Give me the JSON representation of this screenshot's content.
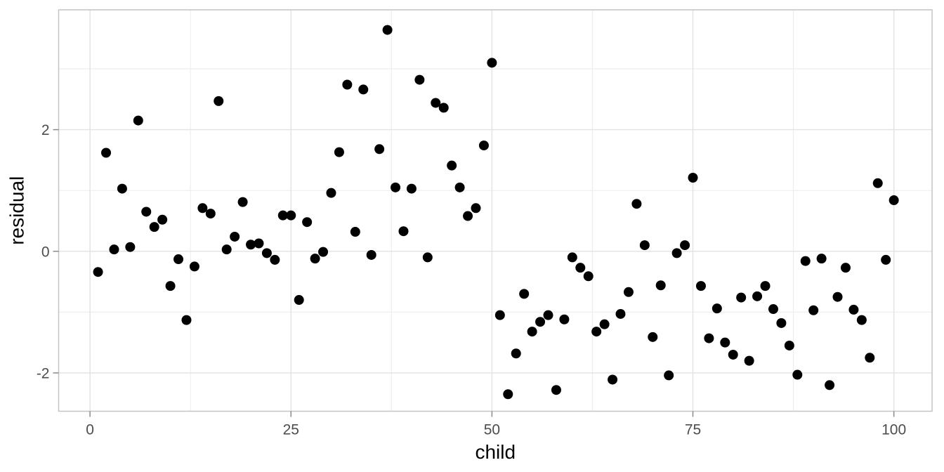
{
  "figure": {
    "background": "#ffffff"
  },
  "chart_data": {
    "type": "scatter",
    "title": "",
    "xlabel": "child",
    "ylabel": "residual",
    "x_ticks": [
      0,
      25,
      50,
      75,
      100
    ],
    "x_tick_labels": [
      "0",
      "25",
      "50",
      "75",
      "100"
    ],
    "y_ticks": [
      2,
      0,
      -2
    ],
    "y_tick_labels": [
      "2",
      "0",
      "-2"
    ],
    "x_minor_ticks": [
      12.5,
      37.5,
      62.5,
      87.5
    ],
    "y_minor_ticks": [
      3,
      1,
      -1
    ],
    "xlim": [
      -3.9,
      104.75
    ],
    "ylim": [
      -2.63,
      3.97
    ],
    "grid": "major+minor",
    "legend_position": "none",
    "marker": {
      "shape": "circle",
      "color": "#000000",
      "radius_px": 7
    },
    "theme": {
      "panel_background": "#ffffff",
      "panel_border": "#c4c4c4",
      "grid_major": "#e2e2e2",
      "grid_minor": "#eeeeee",
      "tick_mark": "#8a8a8a",
      "tick_label": "#4d4d4d",
      "axis_title": "#000000"
    },
    "series_name": "residuals",
    "points": [
      [
        1,
        -0.34
      ],
      [
        2,
        1.62
      ],
      [
        3,
        0.03
      ],
      [
        4,
        1.03
      ],
      [
        5,
        0.07
      ],
      [
        6,
        2.15
      ],
      [
        7,
        0.65
      ],
      [
        8,
        0.4
      ],
      [
        9,
        0.52
      ],
      [
        10,
        -0.57
      ],
      [
        11,
        -0.13
      ],
      [
        12,
        -1.13
      ],
      [
        13,
        -0.25
      ],
      [
        14,
        0.71
      ],
      [
        15,
        0.62
      ],
      [
        16,
        2.47
      ],
      [
        17,
        0.03
      ],
      [
        18,
        0.24
      ],
      [
        19,
        0.81
      ],
      [
        20,
        0.11
      ],
      [
        21,
        0.13
      ],
      [
        22,
        -0.03
      ],
      [
        23,
        -0.14
      ],
      [
        24,
        0.59
      ],
      [
        25,
        0.59
      ],
      [
        26,
        -0.8
      ],
      [
        27,
        0.48
      ],
      [
        28,
        -0.12
      ],
      [
        29,
        -0.01
      ],
      [
        30,
        0.96
      ],
      [
        31,
        1.63
      ],
      [
        32,
        2.74
      ],
      [
        33,
        0.32
      ],
      [
        34,
        2.66
      ],
      [
        35,
        -0.06
      ],
      [
        36,
        1.68
      ],
      [
        37,
        3.64
      ],
      [
        38,
        1.05
      ],
      [
        39,
        0.33
      ],
      [
        40,
        1.03
      ],
      [
        41,
        2.82
      ],
      [
        42,
        -0.1
      ],
      [
        43,
        2.44
      ],
      [
        44,
        2.36
      ],
      [
        45,
        1.41
      ],
      [
        46,
        1.05
      ],
      [
        47,
        0.58
      ],
      [
        48,
        0.71
      ],
      [
        49,
        1.74
      ],
      [
        50,
        3.1
      ],
      [
        51,
        -1.05
      ],
      [
        52,
        -2.35
      ],
      [
        53,
        -1.68
      ],
      [
        54,
        -0.7
      ],
      [
        55,
        -1.32
      ],
      [
        56,
        -1.16
      ],
      [
        57,
        -1.05
      ],
      [
        58,
        -2.28
      ],
      [
        59,
        -1.12
      ],
      [
        60,
        -0.1
      ],
      [
        61,
        -0.27
      ],
      [
        62,
        -0.41
      ],
      [
        63,
        -1.32
      ],
      [
        64,
        -1.2
      ],
      [
        65,
        -2.11
      ],
      [
        66,
        -1.03
      ],
      [
        67,
        -0.67
      ],
      [
        68,
        0.78
      ],
      [
        69,
        0.1
      ],
      [
        70,
        -1.41
      ],
      [
        71,
        -0.56
      ],
      [
        72,
        -2.04
      ],
      [
        73,
        -0.03
      ],
      [
        74,
        0.1
      ],
      [
        75,
        1.21
      ],
      [
        76,
        -0.57
      ],
      [
        77,
        -1.43
      ],
      [
        78,
        -0.94
      ],
      [
        79,
        -1.5
      ],
      [
        80,
        -1.7
      ],
      [
        81,
        -0.76
      ],
      [
        82,
        -1.8
      ],
      [
        83,
        -0.74
      ],
      [
        84,
        -0.57
      ],
      [
        85,
        -0.95
      ],
      [
        86,
        -1.18
      ],
      [
        87,
        -1.55
      ],
      [
        88,
        -2.03
      ],
      [
        89,
        -0.16
      ],
      [
        90,
        -0.97
      ],
      [
        91,
        -0.12
      ],
      [
        92,
        -2.2
      ],
      [
        93,
        -0.75
      ],
      [
        94,
        -0.27
      ],
      [
        95,
        -0.96
      ],
      [
        96,
        -1.13
      ],
      [
        97,
        -1.75
      ],
      [
        98,
        1.12
      ],
      [
        99,
        -0.14
      ],
      [
        100,
        0.84
      ]
    ]
  }
}
